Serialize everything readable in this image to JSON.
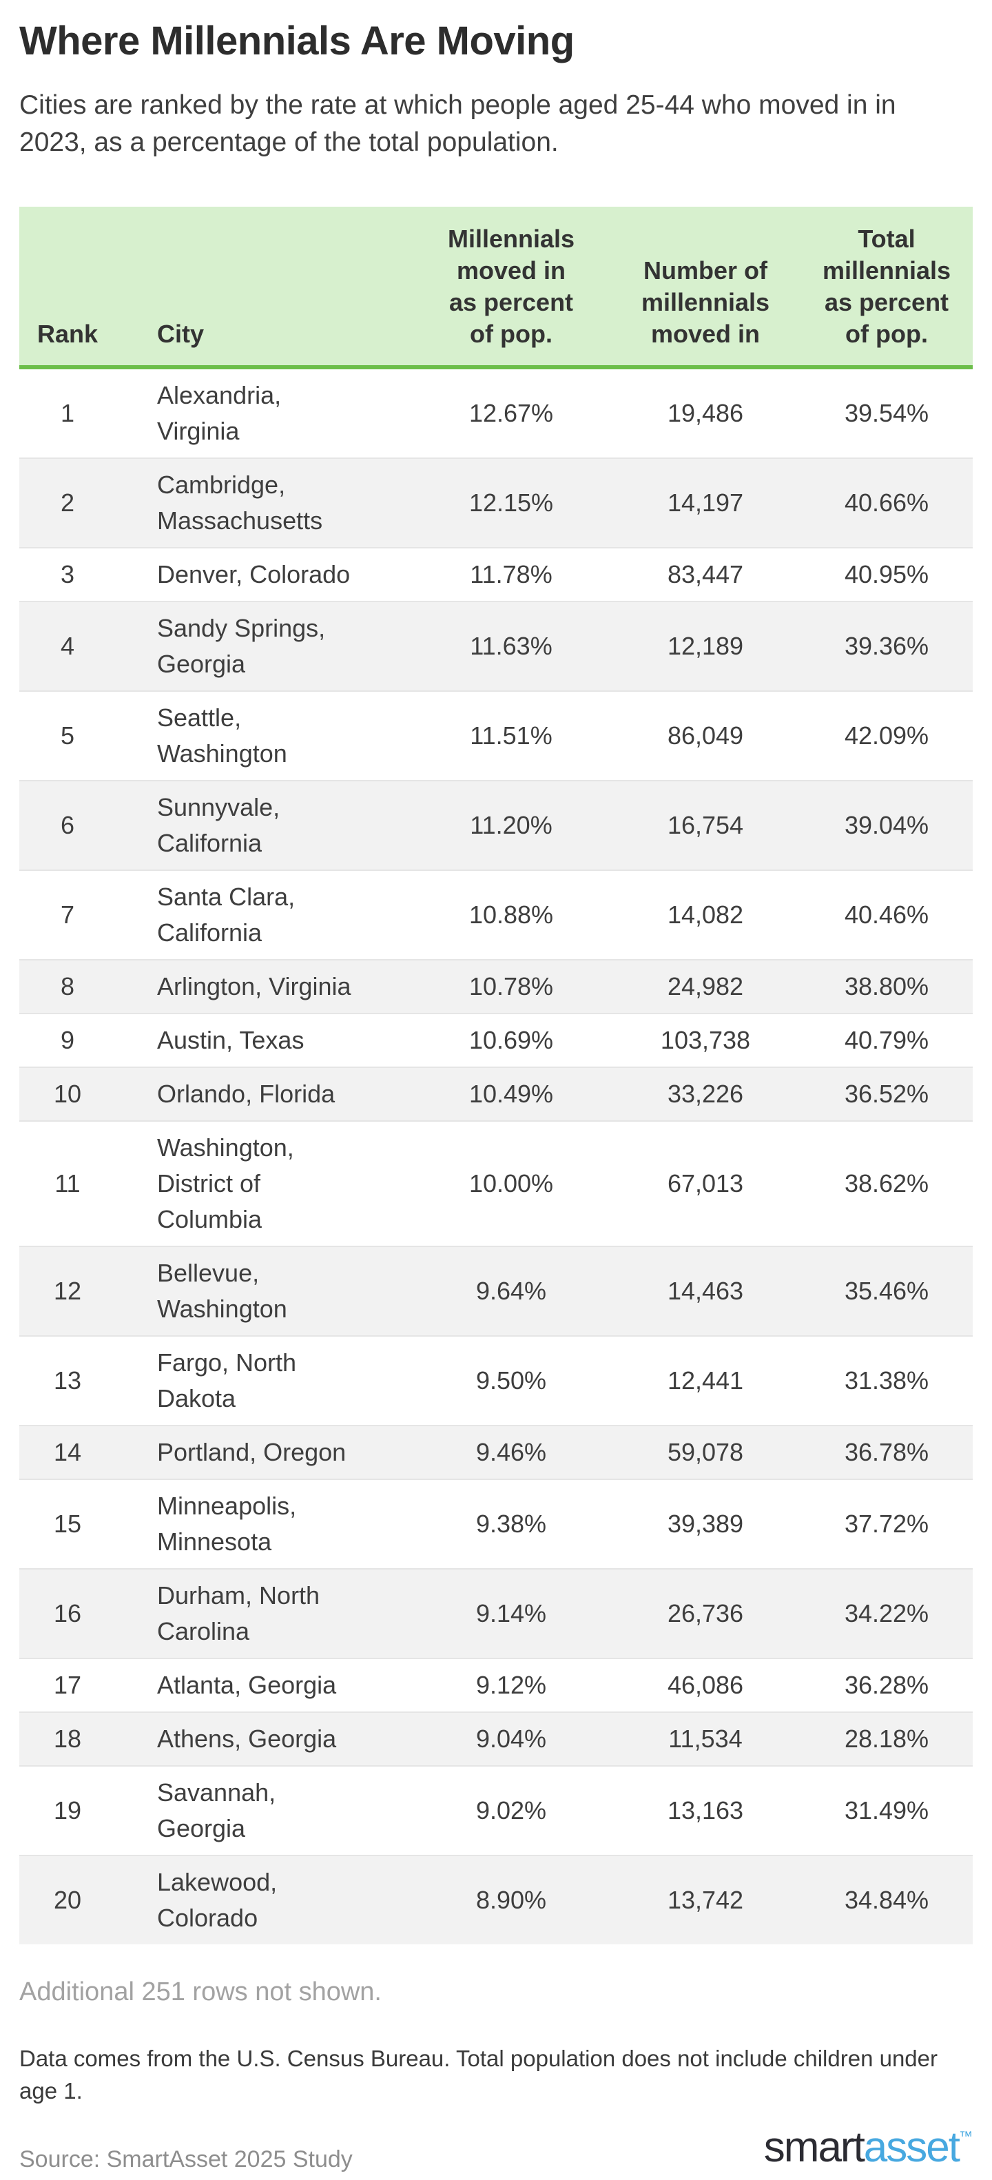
{
  "colors": {
    "header_bg": "#d7f0ce",
    "header_border_green": "#6cbe4a",
    "alt_row_gray": "#f2f2f2",
    "row_divider": "#e5e5e5",
    "text_dark": "#3e3e3e",
    "note_gray": "#a2a2a2",
    "source_gray": "#8e8e8e",
    "brand_dark": "#2c2c33",
    "brand_blue": "#47a8e0"
  },
  "header": {
    "title": "Where Millennials Are Moving",
    "subtitle": "Cities are ranked by the rate at which people aged 25-44 who moved in in\n2023, as a percentage of the total population."
  },
  "table": {
    "columns": [
      {
        "key": "rank",
        "label": "Rank"
      },
      {
        "key": "city",
        "label": "City"
      },
      {
        "key": "pct_moved_in",
        "label": "Millennials\nmoved in\nas percent\nof pop."
      },
      {
        "key": "num_moved_in",
        "label": "Number of\nmillennials\nmoved in"
      },
      {
        "key": "total_pct",
        "label": "Total\nmillennials\nas percent\nof pop."
      }
    ],
    "rows": [
      {
        "rank": "1",
        "city": "Alexandria,\nVirginia",
        "pct_moved_in": "12.67%",
        "num_moved_in": "19,486",
        "total_pct": "39.54%"
      },
      {
        "rank": "2",
        "city": "Cambridge,\nMassachusetts",
        "pct_moved_in": "12.15%",
        "num_moved_in": "14,197",
        "total_pct": "40.66%"
      },
      {
        "rank": "3",
        "city": "Denver, Colorado",
        "pct_moved_in": "11.78%",
        "num_moved_in": "83,447",
        "total_pct": "40.95%"
      },
      {
        "rank": "4",
        "city": "Sandy Springs,\nGeorgia",
        "pct_moved_in": "11.63%",
        "num_moved_in": "12,189",
        "total_pct": "39.36%"
      },
      {
        "rank": "5",
        "city": "Seattle,\nWashington",
        "pct_moved_in": "11.51%",
        "num_moved_in": "86,049",
        "total_pct": "42.09%"
      },
      {
        "rank": "6",
        "city": "Sunnyvale,\nCalifornia",
        "pct_moved_in": "11.20%",
        "num_moved_in": "16,754",
        "total_pct": "39.04%"
      },
      {
        "rank": "7",
        "city": "Santa Clara,\nCalifornia",
        "pct_moved_in": "10.88%",
        "num_moved_in": "14,082",
        "total_pct": "40.46%"
      },
      {
        "rank": "8",
        "city": "Arlington, Virginia",
        "pct_moved_in": "10.78%",
        "num_moved_in": "24,982",
        "total_pct": "38.80%"
      },
      {
        "rank": "9",
        "city": "Austin, Texas",
        "pct_moved_in": "10.69%",
        "num_moved_in": "103,738",
        "total_pct": "40.79%"
      },
      {
        "rank": "10",
        "city": "Orlando, Florida",
        "pct_moved_in": "10.49%",
        "num_moved_in": "33,226",
        "total_pct": "36.52%"
      },
      {
        "rank": "11",
        "city": "Washington,\nDistrict of\nColumbia",
        "pct_moved_in": "10.00%",
        "num_moved_in": "67,013",
        "total_pct": "38.62%"
      },
      {
        "rank": "12",
        "city": "Bellevue,\nWashington",
        "pct_moved_in": "9.64%",
        "num_moved_in": "14,463",
        "total_pct": "35.46%"
      },
      {
        "rank": "13",
        "city": "Fargo, North\nDakota",
        "pct_moved_in": "9.50%",
        "num_moved_in": "12,441",
        "total_pct": "31.38%"
      },
      {
        "rank": "14",
        "city": "Portland, Oregon",
        "pct_moved_in": "9.46%",
        "num_moved_in": "59,078",
        "total_pct": "36.78%"
      },
      {
        "rank": "15",
        "city": "Minneapolis,\nMinnesota",
        "pct_moved_in": "9.38%",
        "num_moved_in": "39,389",
        "total_pct": "37.72%"
      },
      {
        "rank": "16",
        "city": "Durham, North\nCarolina",
        "pct_moved_in": "9.14%",
        "num_moved_in": "26,736",
        "total_pct": "34.22%"
      },
      {
        "rank": "17",
        "city": "Atlanta, Georgia",
        "pct_moved_in": "9.12%",
        "num_moved_in": "46,086",
        "total_pct": "36.28%"
      },
      {
        "rank": "18",
        "city": "Athens, Georgia",
        "pct_moved_in": "9.04%",
        "num_moved_in": "11,534",
        "total_pct": "28.18%"
      },
      {
        "rank": "19",
        "city": "Savannah,\nGeorgia",
        "pct_moved_in": "9.02%",
        "num_moved_in": "13,163",
        "total_pct": "31.49%"
      },
      {
        "rank": "20",
        "city": "Lakewood,\nColorado",
        "pct_moved_in": "8.90%",
        "num_moved_in": "13,742",
        "total_pct": "34.84%"
      }
    ]
  },
  "notes": {
    "rows_note": "Additional 251 rows not shown.",
    "footnote": "Data comes from the U.S. Census Bureau. Total population does not include children under\nage 1.",
    "source": "Source: SmartAsset 2025 Study"
  },
  "branding": {
    "brand_part1": "smart",
    "brand_part2": "asset",
    "trademark": "™"
  },
  "chart_data": {
    "type": "table",
    "title": "Where Millennials Are Moving",
    "subtitle": "Cities are ranked by the rate at which people aged 25-44 who moved in in 2023, as a percentage of the total population.",
    "columns": [
      "Rank",
      "City",
      "Millennials moved in as percent of pop.",
      "Number of millennials moved in",
      "Total millennials as percent of pop."
    ],
    "rows": [
      [
        1,
        "Alexandria, Virginia",
        12.67,
        19486,
        39.54
      ],
      [
        2,
        "Cambridge, Massachusetts",
        12.15,
        14197,
        40.66
      ],
      [
        3,
        "Denver, Colorado",
        11.78,
        83447,
        40.95
      ],
      [
        4,
        "Sandy Springs, Georgia",
        11.63,
        12189,
        39.36
      ],
      [
        5,
        "Seattle, Washington",
        11.51,
        86049,
        42.09
      ],
      [
        6,
        "Sunnyvale, California",
        11.2,
        16754,
        39.04
      ],
      [
        7,
        "Santa Clara, California",
        10.88,
        14082,
        40.46
      ],
      [
        8,
        "Arlington, Virginia",
        10.78,
        24982,
        38.8
      ],
      [
        9,
        "Austin, Texas",
        10.69,
        103738,
        40.79
      ],
      [
        10,
        "Orlando, Florida",
        10.49,
        33226,
        36.52
      ],
      [
        11,
        "Washington, District of Columbia",
        10.0,
        67013,
        38.62
      ],
      [
        12,
        "Bellevue, Washington",
        9.64,
        14463,
        35.46
      ],
      [
        13,
        "Fargo, North Dakota",
        9.5,
        12441,
        31.38
      ],
      [
        14,
        "Portland, Oregon",
        9.46,
        59078,
        36.78
      ],
      [
        15,
        "Minneapolis, Minnesota",
        9.38,
        39389,
        37.72
      ],
      [
        16,
        "Durham, North Carolina",
        9.14,
        26736,
        34.22
      ],
      [
        17,
        "Atlanta, Georgia",
        9.12,
        46086,
        36.28
      ],
      [
        18,
        "Athens, Georgia",
        9.04,
        11534,
        28.18
      ],
      [
        19,
        "Savannah, Georgia",
        9.02,
        13163,
        31.49
      ],
      [
        20,
        "Lakewood, Colorado",
        8.9,
        13742,
        34.84
      ]
    ],
    "units": {
      "Millennials moved in as percent of pop.": "%",
      "Total millennials as percent of pop.": "%"
    },
    "footnotes": [
      "Additional 251 rows not shown.",
      "Data comes from the U.S. Census Bureau. Total population does not include children under age 1.",
      "Source: SmartAsset 2025 Study"
    ]
  }
}
